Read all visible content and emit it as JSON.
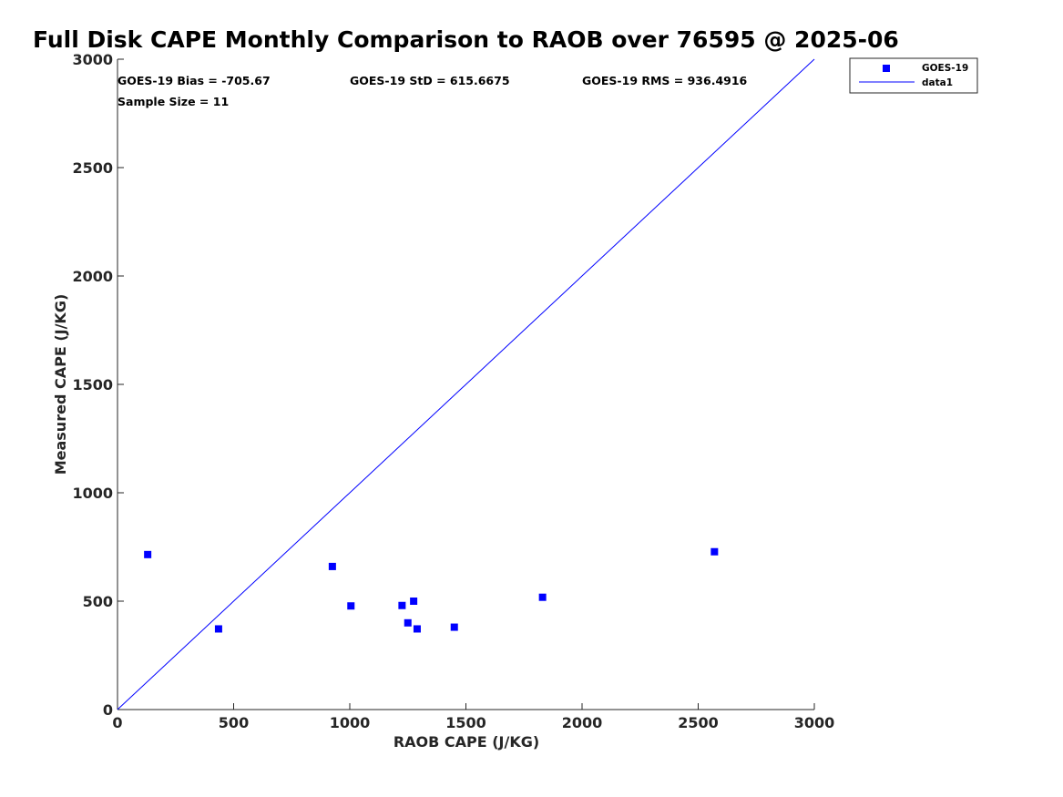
{
  "chart_data": {
    "type": "scatter",
    "title": "Full Disk CAPE Monthly Comparison to RAOB over 76595 @ 2025-06",
    "xlabel": "RAOB CAPE (J/KG)",
    "ylabel": "Measured CAPE (J/KG)",
    "xlim": [
      0,
      3000
    ],
    "ylim": [
      0,
      3000
    ],
    "x_ticks": [
      0,
      500,
      1000,
      1500,
      2000,
      2500,
      3000
    ],
    "y_ticks": [
      0,
      500,
      1000,
      1500,
      2000,
      2500,
      3000
    ],
    "x_tick_labels": [
      "0",
      "500",
      "1000",
      "1500",
      "2000",
      "2500",
      "3000"
    ],
    "y_tick_labels": [
      "0",
      "500",
      "1000",
      "1500",
      "2000",
      "2500",
      "3000"
    ],
    "grid": false,
    "series": [
      {
        "name": "GOES-19",
        "kind": "scatter",
        "marker": "square",
        "color": "#0000ff",
        "x": [
          130,
          435,
          925,
          1005,
          1225,
          1250,
          1275,
          1290,
          1450,
          1830,
          2570
        ],
        "y": [
          715,
          372,
          660,
          478,
          480,
          400,
          500,
          372,
          380,
          518,
          728
        ]
      },
      {
        "name": "data1",
        "kind": "line",
        "color": "#0000ff",
        "x": [
          0,
          3000
        ],
        "y": [
          0,
          3000
        ]
      }
    ],
    "legend": {
      "position": "top-right",
      "entries": [
        "GOES-19",
        "data1"
      ]
    },
    "annotations": {
      "bias": "GOES-19 Bias = -705.67",
      "std": "GOES-19 StD = 615.6675",
      "rms": "GOES-19 RMS = 936.4916",
      "sample_size": "Sample Size = 11"
    }
  }
}
